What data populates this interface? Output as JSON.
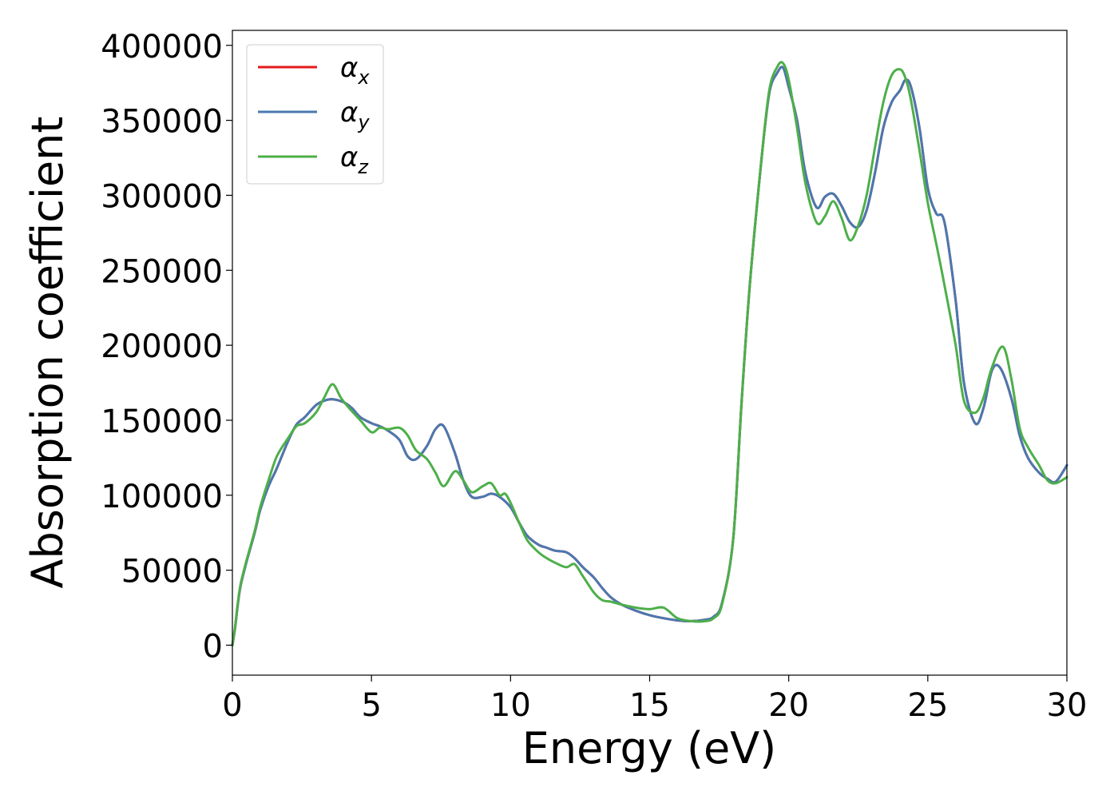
{
  "chart_data": {
    "type": "line",
    "title": "",
    "xlabel": "Energy (eV)",
    "ylabel": "Absorption coefficient",
    "xlim": [
      0,
      30
    ],
    "ylim": [
      -20000,
      410000
    ],
    "xticks": [
      0,
      5,
      10,
      15,
      20,
      25,
      30
    ],
    "yticks": [
      0,
      50000,
      100000,
      150000,
      200000,
      250000,
      300000,
      350000,
      400000
    ],
    "grid": false,
    "legend_position": "top-left",
    "series": [
      {
        "name": "αx",
        "label_base": "α",
        "label_sub": "x",
        "color": "#e41a1c",
        "x": [
          0,
          0.1,
          0.2,
          0.3,
          0.5,
          0.8,
          1.0,
          1.3,
          1.6,
          2.0,
          2.3,
          2.6,
          3.0,
          3.3,
          3.6,
          4.0,
          4.3,
          4.6,
          5.0,
          5.3,
          5.6,
          6.0,
          6.3,
          6.6,
          7.0,
          7.3,
          7.6,
          8.0,
          8.3,
          8.6,
          9.0,
          9.3,
          9.6,
          10.0,
          10.3,
          10.6,
          11.0,
          11.3,
          11.6,
          12.0,
          12.3,
          12.6,
          13.0,
          13.3,
          13.6,
          14.0,
          14.5,
          15.0,
          15.5,
          16.0,
          16.5,
          17.0,
          17.3,
          17.6,
          18.0,
          18.3,
          18.6,
          19.0,
          19.3,
          19.6,
          19.8,
          20.0,
          20.3,
          20.6,
          21.0,
          21.3,
          21.6,
          21.9,
          22.2,
          22.5,
          22.8,
          23.1,
          23.4,
          23.7,
          24.0,
          24.2,
          24.4,
          24.7,
          25.0,
          25.3,
          25.6,
          26.0,
          26.3,
          26.7,
          27.0,
          27.3,
          27.6,
          28.0,
          28.3,
          28.6,
          29.0,
          29.3,
          29.6,
          30.0
        ],
        "y": [
          0,
          12000,
          28000,
          40000,
          55000,
          75000,
          90000,
          106000,
          118000,
          136000,
          147000,
          152000,
          160000,
          163000,
          164000,
          162000,
          158000,
          152000,
          148000,
          146000,
          143000,
          137000,
          126000,
          124000,
          133000,
          144000,
          146000,
          128000,
          110000,
          99000,
          99000,
          101000,
          99000,
          92000,
          82000,
          73000,
          67000,
          65000,
          63000,
          62000,
          58000,
          52000,
          45000,
          38000,
          32000,
          27000,
          23000,
          20000,
          18000,
          16500,
          16000,
          17000,
          19000,
          28000,
          70000,
          160000,
          240000,
          320000,
          368000,
          382000,
          385000,
          372000,
          350000,
          315000,
          292000,
          299000,
          301000,
          293000,
          282000,
          279000,
          290000,
          315000,
          345000,
          362000,
          370000,
          377000,
          372000,
          345000,
          305000,
          288000,
          282000,
          230000,
          175000,
          148000,
          158000,
          183000,
          185000,
          165000,
          140000,
          125000,
          115000,
          111000,
          109000,
          120000
        ]
      },
      {
        "name": "αy",
        "label_base": "α",
        "label_sub": "y",
        "color": "#4a78b0",
        "x": [
          0,
          0.1,
          0.2,
          0.3,
          0.5,
          0.8,
          1.0,
          1.3,
          1.6,
          2.0,
          2.3,
          2.6,
          3.0,
          3.3,
          3.6,
          4.0,
          4.3,
          4.6,
          5.0,
          5.3,
          5.6,
          6.0,
          6.3,
          6.6,
          7.0,
          7.3,
          7.6,
          8.0,
          8.3,
          8.6,
          9.0,
          9.3,
          9.6,
          10.0,
          10.3,
          10.6,
          11.0,
          11.3,
          11.6,
          12.0,
          12.3,
          12.6,
          13.0,
          13.3,
          13.6,
          14.0,
          14.5,
          15.0,
          15.5,
          16.0,
          16.5,
          17.0,
          17.3,
          17.6,
          18.0,
          18.3,
          18.6,
          19.0,
          19.3,
          19.6,
          19.8,
          20.0,
          20.3,
          20.6,
          21.0,
          21.3,
          21.6,
          21.9,
          22.2,
          22.5,
          22.8,
          23.1,
          23.4,
          23.7,
          24.0,
          24.2,
          24.4,
          24.7,
          25.0,
          25.3,
          25.6,
          26.0,
          26.3,
          26.7,
          27.0,
          27.3,
          27.6,
          28.0,
          28.3,
          28.6,
          29.0,
          29.3,
          29.6,
          30.0
        ],
        "y": [
          0,
          12000,
          28000,
          40000,
          55000,
          75000,
          90000,
          106000,
          118000,
          136000,
          147000,
          152000,
          160000,
          163000,
          164000,
          162000,
          158000,
          152000,
          148000,
          146000,
          143000,
          137000,
          126000,
          124000,
          133000,
          144000,
          146000,
          128000,
          110000,
          99000,
          99000,
          101000,
          99000,
          92000,
          82000,
          73000,
          67000,
          65000,
          63000,
          62000,
          58000,
          52000,
          45000,
          38000,
          32000,
          27000,
          23000,
          20000,
          18000,
          16500,
          16000,
          17000,
          19000,
          28000,
          70000,
          160000,
          240000,
          320000,
          368000,
          382000,
          385000,
          372000,
          350000,
          315000,
          292000,
          299000,
          301000,
          293000,
          282000,
          279000,
          290000,
          315000,
          345000,
          362000,
          370000,
          377000,
          372000,
          345000,
          305000,
          288000,
          282000,
          230000,
          175000,
          148000,
          158000,
          183000,
          185000,
          165000,
          140000,
          125000,
          115000,
          111000,
          109000,
          120000
        ]
      },
      {
        "name": "αz",
        "label_base": "α",
        "label_sub": "z",
        "color": "#4daf4a",
        "x": [
          0,
          0.1,
          0.2,
          0.3,
          0.5,
          0.8,
          1.0,
          1.3,
          1.6,
          2.0,
          2.3,
          2.6,
          3.0,
          3.3,
          3.6,
          3.9,
          4.2,
          4.6,
          5.0,
          5.3,
          5.6,
          6.0,
          6.3,
          6.6,
          7.0,
          7.3,
          7.6,
          8.0,
          8.3,
          8.6,
          9.0,
          9.3,
          9.6,
          9.8,
          10.0,
          10.3,
          10.6,
          11.0,
          11.3,
          11.6,
          12.0,
          12.3,
          12.6,
          13.0,
          13.3,
          13.6,
          14.0,
          14.5,
          15.0,
          15.5,
          16.0,
          16.5,
          17.0,
          17.3,
          17.6,
          18.0,
          18.3,
          18.6,
          19.0,
          19.3,
          19.6,
          19.8,
          20.0,
          20.3,
          20.6,
          21.0,
          21.3,
          21.6,
          21.9,
          22.2,
          22.5,
          22.8,
          23.1,
          23.4,
          23.7,
          24.0,
          24.2,
          24.4,
          24.7,
          25.0,
          25.3,
          25.6,
          26.0,
          26.3,
          26.7,
          27.0,
          27.3,
          27.7,
          28.0,
          28.3,
          28.6,
          29.0,
          29.3,
          29.6,
          30.0
        ],
        "y": [
          0,
          13000,
          29000,
          41000,
          56000,
          76000,
          92000,
          110000,
          126000,
          138000,
          146000,
          148000,
          155000,
          165000,
          174000,
          165000,
          158000,
          150000,
          142000,
          145000,
          144000,
          145000,
          140000,
          130000,
          124000,
          115000,
          106000,
          116000,
          110000,
          102000,
          106000,
          108000,
          100000,
          101000,
          95000,
          82000,
          70000,
          62000,
          58000,
          55000,
          52000,
          54000,
          46000,
          35000,
          30000,
          29000,
          27000,
          25000,
          24000,
          25000,
          18000,
          16000,
          16000,
          18000,
          27000,
          70000,
          160000,
          240000,
          320000,
          370000,
          386000,
          388000,
          377000,
          345000,
          308000,
          282000,
          286000,
          296000,
          285000,
          270000,
          280000,
          300000,
          332000,
          362000,
          380000,
          384000,
          378000,
          363000,
          330000,
          295000,
          268000,
          240000,
          200000,
          163000,
          155000,
          165000,
          185000,
          199000,
          178000,
          145000,
          132000,
          120000,
          110000,
          108000,
          112000
        ]
      }
    ]
  }
}
